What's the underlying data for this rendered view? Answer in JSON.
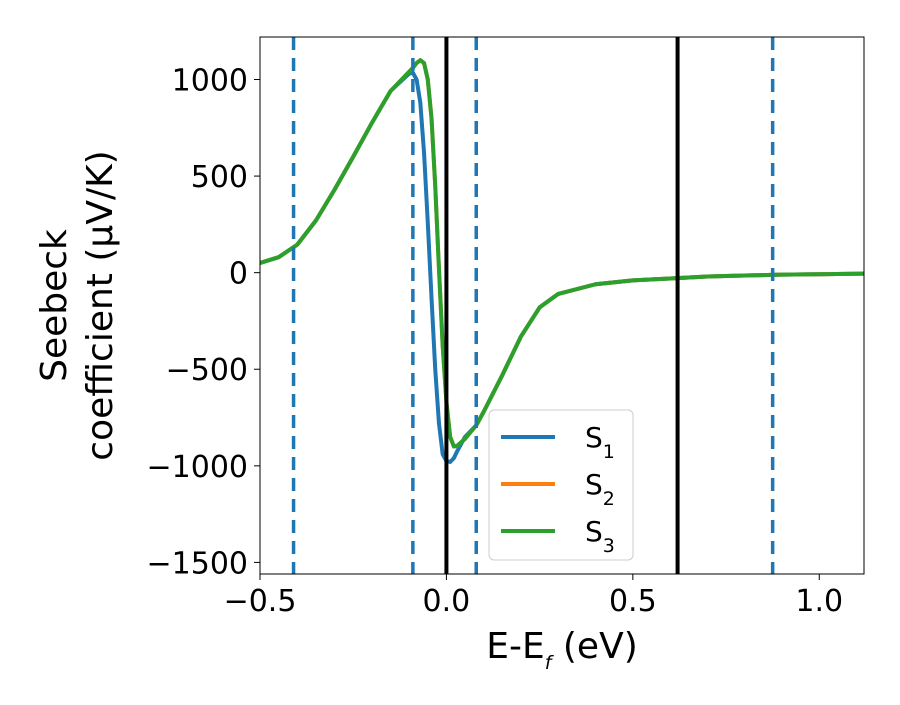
{
  "chart_data": {
    "type": "line",
    "title": "",
    "xlabel": {
      "main": "E-E",
      "sub": "f",
      "unit": " (eV)"
    },
    "ylabel": {
      "line1": "Seebeck",
      "line2": "coefficient  (μV/K)"
    },
    "xlim": [
      -0.5,
      1.12
    ],
    "ylim": [
      -1560,
      1220
    ],
    "xticks": [
      -0.5,
      0.0,
      0.5,
      1.0
    ],
    "xtick_labels": [
      "−0.5",
      "0.0",
      "0.5",
      "1.0"
    ],
    "yticks": [
      -1500,
      -1000,
      -500,
      0,
      500,
      1000
    ],
    "ytick_labels": [
      "−1500",
      "−1000",
      "−500",
      "0",
      "500",
      "1000"
    ],
    "grid": false,
    "legend_position": "lower-center",
    "colors": {
      "S1": "#1f77b4",
      "S2": "#ff7f0e",
      "S3": "#2ca02c",
      "dashed_lines": "#1f77b4",
      "solid_lines": "#000000"
    },
    "vertical_lines": {
      "solid_black": [
        0.0,
        0.62
      ],
      "dashed_blue": [
        -0.41,
        -0.09,
        0.08,
        0.875
      ]
    },
    "series": [
      {
        "name": "S",
        "sub": "1",
        "x": [
          -0.5,
          -0.45,
          -0.4,
          -0.35,
          -0.3,
          -0.25,
          -0.2,
          -0.15,
          -0.1,
          -0.09,
          -0.08,
          -0.07,
          -0.06,
          -0.05,
          -0.04,
          -0.03,
          -0.02,
          -0.01,
          0.0,
          0.01,
          0.02,
          0.03,
          0.05,
          0.08,
          0.1,
          0.15,
          0.2,
          0.25,
          0.3,
          0.4,
          0.5,
          0.6,
          0.7,
          0.8,
          0.9,
          1.0,
          1.12
        ],
        "y": [
          50,
          80,
          145,
          270,
          430,
          600,
          775,
          940,
          1030,
          1035,
          1000,
          880,
          620,
          260,
          -130,
          -500,
          -780,
          -940,
          -975,
          -980,
          -960,
          -920,
          -850,
          -790,
          -720,
          -530,
          -330,
          -180,
          -110,
          -60,
          -40,
          -30,
          -20,
          -15,
          -10,
          -8,
          -5
        ]
      },
      {
        "name": "S",
        "sub": "2",
        "x": [
          -0.5,
          -0.45,
          -0.4,
          -0.35,
          -0.3,
          -0.25,
          -0.2,
          -0.15,
          -0.1,
          -0.09,
          -0.08,
          -0.07,
          -0.06,
          -0.05,
          -0.04,
          -0.03,
          -0.02,
          -0.01,
          0.0,
          0.01,
          0.02,
          0.03,
          0.05,
          0.08,
          0.1,
          0.15,
          0.2,
          0.25,
          0.3,
          0.4,
          0.5,
          0.6,
          0.7,
          0.8,
          0.9,
          1.0,
          1.12
        ],
        "y": [
          50,
          80,
          145,
          270,
          430,
          600,
          775,
          940,
          1040,
          1060,
          1085,
          1100,
          1085,
          1000,
          800,
          450,
          20,
          -380,
          -670,
          -850,
          -900,
          -895,
          -860,
          -790,
          -720,
          -530,
          -330,
          -180,
          -110,
          -60,
          -40,
          -30,
          -20,
          -15,
          -10,
          -8,
          -5
        ]
      },
      {
        "name": "S",
        "sub": "3",
        "x": [
          -0.5,
          -0.45,
          -0.4,
          -0.35,
          -0.3,
          -0.25,
          -0.2,
          -0.15,
          -0.1,
          -0.09,
          -0.08,
          -0.07,
          -0.06,
          -0.05,
          -0.04,
          -0.03,
          -0.02,
          -0.01,
          0.0,
          0.01,
          0.02,
          0.03,
          0.05,
          0.08,
          0.1,
          0.15,
          0.2,
          0.25,
          0.3,
          0.4,
          0.5,
          0.6,
          0.7,
          0.8,
          0.9,
          1.0,
          1.12
        ],
        "y": [
          50,
          80,
          145,
          270,
          430,
          600,
          775,
          940,
          1040,
          1060,
          1085,
          1100,
          1085,
          1000,
          800,
          450,
          20,
          -380,
          -670,
          -850,
          -900,
          -895,
          -860,
          -790,
          -720,
          -530,
          -330,
          -180,
          -110,
          -60,
          -40,
          -30,
          -20,
          -15,
          -10,
          -8,
          -5
        ]
      }
    ]
  }
}
